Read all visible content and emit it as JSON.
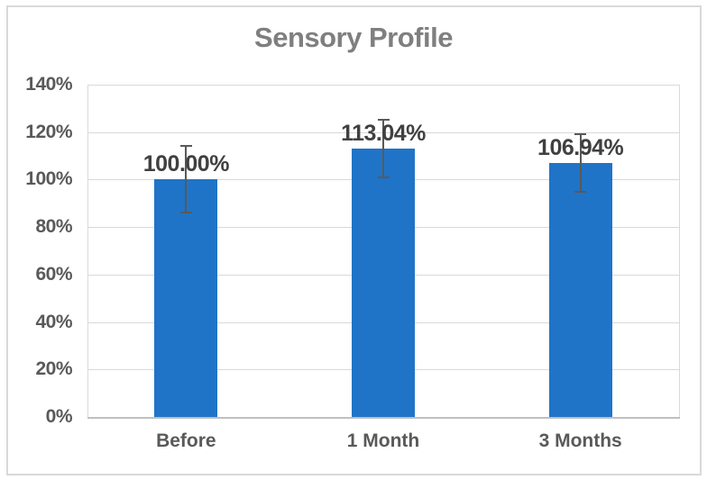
{
  "chart_data": {
    "type": "bar",
    "title": "Sensory Profile",
    "categories": [
      "Before",
      "1 Month",
      "3 Months"
    ],
    "values": [
      100.0,
      113.04,
      106.94
    ],
    "data_labels": [
      "100.00%",
      "113.04%",
      "106.94%"
    ],
    "error_bars": [
      14.4,
      12.4,
      12.4
    ],
    "yticks": [
      0,
      20,
      40,
      60,
      80,
      100,
      120,
      140
    ],
    "ytick_labels": [
      "0%",
      "20%",
      "40%",
      "60%",
      "80%",
      "100%",
      "120%",
      "140%"
    ],
    "ylim": [
      0,
      140
    ],
    "xlabel": "",
    "ylabel": "",
    "grid": true,
    "legend": false
  },
  "colors": {
    "bar": "#1F74C8",
    "error_bar": "#595959",
    "gridline": "#D9D9D9",
    "axis_line": "#BFBFBF",
    "frame_border": "#D9D9D9",
    "title_text": "#7F7F7F",
    "tick_text": "#595959",
    "data_label_text": "#404040",
    "background": "#FFFFFF"
  }
}
